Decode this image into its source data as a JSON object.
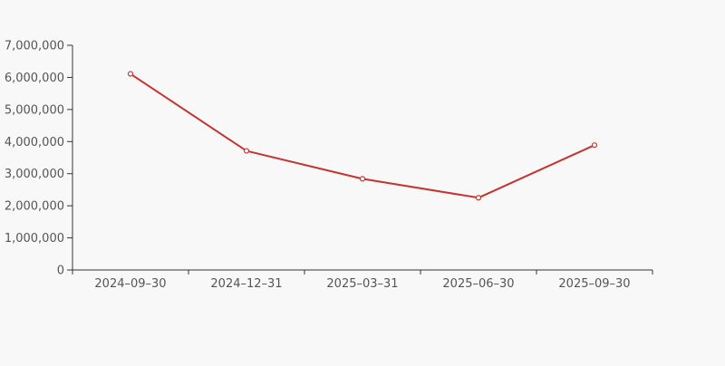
{
  "chart_data": {
    "type": "line",
    "title": "",
    "xlabel": "",
    "ylabel": "",
    "categories": [
      "2024–09–30",
      "2024–12–31",
      "2025–03–31",
      "2025–06–30",
      "2025–09–30"
    ],
    "values": [
      6110000,
      3710000,
      2840000,
      2250000,
      3890000
    ],
    "ylim": [
      0,
      7000000
    ],
    "ytick_interval": 1000000,
    "ytick_labels": [
      "0",
      "1,000,000",
      "2,000,000",
      "3,000,000",
      "4,000,000",
      "5,000,000",
      "6,000,000",
      "7,000,000"
    ],
    "grid": "off",
    "legend": "none",
    "colors": {
      "line": "#c23531",
      "marker_fill": "#ffffff",
      "axis": "#333333",
      "label": "#555555",
      "background": "#f8f8f8"
    }
  }
}
